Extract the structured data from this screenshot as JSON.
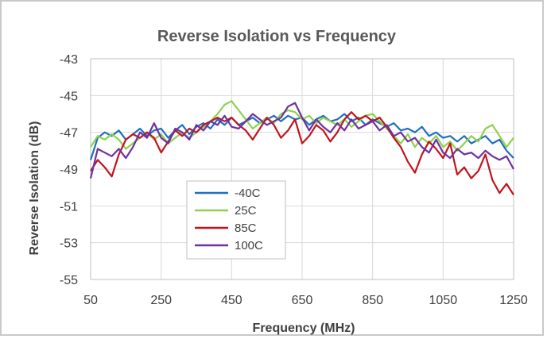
{
  "chart_data": {
    "type": "line",
    "title": "Reverse Isolation vs Frequency",
    "xlabel": "Frequency (MHz)",
    "ylabel": "Reverse Isolation (dB)",
    "xlim": [
      50,
      1250
    ],
    "ylim": [
      -55,
      -43
    ],
    "xticks": [
      50,
      250,
      450,
      650,
      850,
      1050,
      1250
    ],
    "yticks": [
      -43,
      -45,
      -47,
      -49,
      -51,
      -53,
      -55
    ],
    "xtick_labels": [
      "50",
      "250",
      "450",
      "650",
      "850",
      "1050",
      "1250"
    ],
    "ytick_labels": [
      "-43",
      "-45",
      "-47",
      "-49",
      "-51",
      "-53",
      "-55"
    ],
    "grid": true,
    "legend_position": "lower-left",
    "series": [
      {
        "name": "-40C",
        "color": "#1f6fbf",
        "x": [
          50,
          70,
          90,
          110,
          130,
          150,
          170,
          190,
          210,
          230,
          250,
          270,
          290,
          310,
          330,
          350,
          370,
          390,
          410,
          430,
          450,
          470,
          490,
          510,
          530,
          550,
          570,
          590,
          610,
          630,
          650,
          670,
          690,
          710,
          730,
          750,
          770,
          790,
          810,
          830,
          850,
          870,
          890,
          910,
          930,
          950,
          970,
          990,
          1010,
          1030,
          1050,
          1070,
          1090,
          1110,
          1130,
          1150,
          1170,
          1190,
          1210,
          1230,
          1250
        ],
        "y": [
          -48.5,
          -47.3,
          -47.0,
          -47.2,
          -46.9,
          -47.4,
          -47.1,
          -46.8,
          -47.2,
          -46.9,
          -46.8,
          -47.3,
          -46.9,
          -46.6,
          -47.1,
          -46.7,
          -46.5,
          -46.8,
          -46.3,
          -46.6,
          -46.2,
          -46.6,
          -46.4,
          -46.2,
          -46.5,
          -46.3,
          -46.1,
          -46.4,
          -46.1,
          -46.3,
          -46.2,
          -46.6,
          -46.3,
          -46.1,
          -46.4,
          -46.3,
          -46.0,
          -46.4,
          -46.2,
          -46.6,
          -46.3,
          -46.5,
          -46.7,
          -46.5,
          -46.9,
          -46.8,
          -47.0,
          -46.7,
          -47.2,
          -47.0,
          -47.3,
          -47.2,
          -47.5,
          -47.2,
          -47.6,
          -47.4,
          -47.2,
          -47.6,
          -47.4,
          -48.0,
          -48.4
        ]
      },
      {
        "name": "25C",
        "color": "#8fd14f",
        "x": [
          50,
          70,
          90,
          110,
          130,
          150,
          170,
          190,
          210,
          230,
          250,
          270,
          290,
          310,
          330,
          350,
          370,
          390,
          410,
          430,
          450,
          470,
          490,
          510,
          530,
          550,
          570,
          590,
          610,
          630,
          650,
          670,
          690,
          710,
          730,
          750,
          770,
          790,
          810,
          830,
          850,
          870,
          890,
          910,
          930,
          950,
          970,
          990,
          1010,
          1030,
          1050,
          1070,
          1090,
          1110,
          1130,
          1150,
          1170,
          1190,
          1210,
          1230,
          1250
        ],
        "y": [
          -47.8,
          -47.2,
          -47.4,
          -47.1,
          -47.4,
          -47.9,
          -47.6,
          -47.3,
          -47.0,
          -47.4,
          -47.1,
          -47.6,
          -47.3,
          -47.0,
          -47.3,
          -47.0,
          -46.7,
          -46.4,
          -46.0,
          -45.5,
          -45.3,
          -45.8,
          -46.3,
          -46.8,
          -46.5,
          -46.2,
          -46.5,
          -46.0,
          -45.8,
          -45.9,
          -46.3,
          -46.1,
          -46.5,
          -46.2,
          -46.4,
          -46.6,
          -46.3,
          -46.7,
          -46.4,
          -46.1,
          -46.0,
          -46.4,
          -46.8,
          -47.2,
          -47.6,
          -47.1,
          -47.8,
          -47.3,
          -47.6,
          -47.2,
          -47.8,
          -47.5,
          -48.0,
          -47.6,
          -47.2,
          -47.5,
          -46.8,
          -46.6,
          -47.2,
          -47.8,
          -47.3
        ]
      },
      {
        "name": "85C",
        "color": "#c0141c",
        "x": [
          50,
          70,
          90,
          110,
          130,
          150,
          170,
          190,
          210,
          230,
          250,
          270,
          290,
          310,
          330,
          350,
          370,
          390,
          410,
          430,
          450,
          470,
          490,
          510,
          530,
          550,
          570,
          590,
          610,
          630,
          650,
          670,
          690,
          710,
          730,
          750,
          770,
          790,
          810,
          830,
          850,
          870,
          890,
          910,
          930,
          950,
          970,
          990,
          1010,
          1030,
          1050,
          1070,
          1090,
          1110,
          1130,
          1150,
          1170,
          1190,
          1210,
          1230,
          1250
        ],
        "y": [
          -49.1,
          -48.5,
          -48.9,
          -49.4,
          -48.2,
          -47.4,
          -47.1,
          -47.3,
          -47.0,
          -47.3,
          -48.1,
          -47.5,
          -46.9,
          -47.2,
          -46.8,
          -47.0,
          -46.6,
          -46.4,
          -46.2,
          -46.4,
          -46.2,
          -46.6,
          -46.9,
          -47.4,
          -46.8,
          -46.2,
          -46.6,
          -47.3,
          -46.9,
          -46.3,
          -47.6,
          -47.2,
          -46.6,
          -46.9,
          -47.5,
          -47.0,
          -46.3,
          -45.9,
          -46.3,
          -46.1,
          -46.4,
          -46.2,
          -46.7,
          -47.3,
          -47.8,
          -48.6,
          -49.2,
          -48.2,
          -47.5,
          -47.9,
          -48.4,
          -47.6,
          -49.3,
          -48.9,
          -49.5,
          -49.1,
          -48.2,
          -49.6,
          -50.3,
          -49.8,
          -50.4
        ]
      },
      {
        "name": "100C",
        "color": "#7030a0",
        "x": [
          50,
          70,
          90,
          110,
          130,
          150,
          170,
          190,
          210,
          230,
          250,
          270,
          290,
          310,
          330,
          350,
          370,
          390,
          410,
          430,
          450,
          470,
          490,
          510,
          530,
          550,
          570,
          590,
          610,
          630,
          650,
          670,
          690,
          710,
          730,
          750,
          770,
          790,
          810,
          830,
          850,
          870,
          890,
          910,
          930,
          950,
          970,
          990,
          1010,
          1030,
          1050,
          1070,
          1090,
          1110,
          1130,
          1150,
          1170,
          1190,
          1210,
          1230,
          1250
        ],
        "y": [
          -49.5,
          -47.9,
          -48.1,
          -48.3,
          -47.9,
          -48.4,
          -47.8,
          -47.0,
          -47.3,
          -46.5,
          -47.3,
          -47.6,
          -46.8,
          -47.0,
          -47.4,
          -46.6,
          -46.9,
          -46.4,
          -46.6,
          -46.1,
          -46.7,
          -46.8,
          -46.4,
          -46.0,
          -46.3,
          -46.6,
          -46.4,
          -46.2,
          -45.6,
          -45.4,
          -46.2,
          -46.9,
          -46.3,
          -46.7,
          -47.0,
          -46.5,
          -46.9,
          -46.3,
          -46.8,
          -46.6,
          -46.4,
          -46.9,
          -46.6,
          -47.2,
          -47.0,
          -47.5,
          -47.3,
          -47.8,
          -48.1,
          -47.4,
          -48.1,
          -48.4,
          -47.9,
          -48.2,
          -48.1,
          -48.4,
          -48.0,
          -48.3,
          -48.5,
          -48.3,
          -49.0
        ]
      }
    ]
  }
}
